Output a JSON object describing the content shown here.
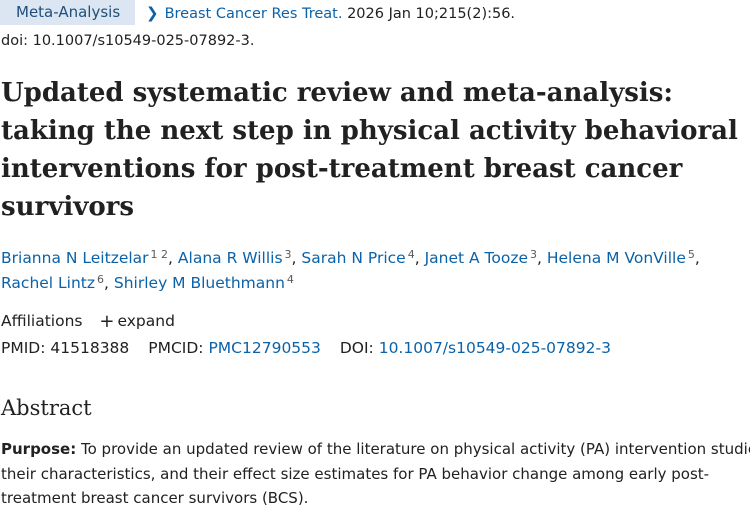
{
  "header": {
    "article_type": "Meta-Analysis",
    "journal": "Breast Cancer Res Treat.",
    "citation": " 2026 Jan 10;215(2):56.",
    "doi_line": "doi: 10.1007/s10549-025-07892-3."
  },
  "title_lines": [
    "Updated systematic review and meta-analysis:",
    "taking the next step in physical activity behavioral",
    "interventions for post-treatment breast cancer",
    "survivors"
  ],
  "authors": [
    {
      "name": "Brianna N Leitzelar",
      "sup": "1 2"
    },
    {
      "name": "Alana R Willis",
      "sup": "3"
    },
    {
      "name": "Sarah N Price",
      "sup": "4"
    },
    {
      "name": "Janet A Tooze",
      "sup": "3"
    },
    {
      "name": "Helena M VonVille",
      "sup": "5"
    },
    {
      "name": "Rachel Lintz",
      "sup": "6"
    },
    {
      "name": "Shirley M Bluethmann",
      "sup": "4"
    }
  ],
  "affiliations": {
    "label": "Affiliations",
    "expand_label": "expand"
  },
  "ids": {
    "pmid_label": "PMID:",
    "pmid": "41518388",
    "pmcid_label": "PMCID:",
    "pmcid": "PMC12790553",
    "doi_label": "DOI:",
    "doi": "10.1007/s10549-025-07892-3"
  },
  "abstract": {
    "heading": "Abstract",
    "purpose_label": "Purpose:",
    "lines": [
      " To provide an updated review of the literature on physical activity (PA) intervention studies,",
      "their characteristics, and their effect size estimates for PA behavior change among early post-",
      "treatment breast cancer survivors (BCS)."
    ]
  }
}
